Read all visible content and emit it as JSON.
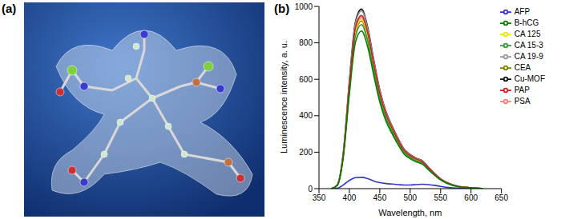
{
  "panel_labels": [
    "(a)",
    "(b)"
  ],
  "chart_data": {
    "type": "line",
    "x_label": "Wavelength, nm",
    "y_label": "Luminescence intensity, a. u.",
    "x": [
      370,
      380,
      390,
      400,
      410,
      420,
      430,
      440,
      450,
      460,
      470,
      480,
      490,
      500,
      510,
      520,
      530,
      540,
      550,
      560,
      580,
      600,
      620
    ],
    "xlim": [
      350,
      650
    ],
    "xticks": [
      350,
      400,
      450,
      500,
      550,
      600,
      650
    ],
    "ylim": [
      0,
      1000
    ],
    "yticks": [
      0,
      200,
      400,
      600,
      800,
      1000
    ],
    "grid": false,
    "legend": "upper right",
    "series": [
      {
        "name": "Cu-MOF",
        "color": "#111111",
        "values": [
          0,
          20,
          197,
          591,
          916,
          985,
          887,
          709,
          542,
          424,
          345,
          276,
          217,
          187,
          167,
          153,
          118,
          84,
          54,
          34,
          12,
          5,
          0
        ]
      },
      {
        "name": "AFP",
        "color": "#3333cc",
        "values": [
          0,
          2,
          20,
          45,
          60,
          62,
          55,
          42,
          33,
          28,
          25,
          22,
          20,
          20,
          22,
          24,
          22,
          18,
          12,
          7,
          3,
          1,
          0
        ]
      },
      {
        "name": "CEA",
        "color": "#808000",
        "values": [
          0,
          18,
          184,
          552,
          856,
          920,
          828,
          662,
          506,
          396,
          322,
          258,
          202,
          175,
          156,
          143,
          110,
          78,
          51,
          32,
          11,
          5,
          0
        ]
      },
      {
        "name": "PSA",
        "color": "#f08070",
        "values": [
          0,
          19,
          188,
          564,
          874,
          940,
          846,
          677,
          517,
          404,
          329,
          263,
          207,
          179,
          160,
          146,
          113,
          80,
          52,
          33,
          11,
          5,
          0
        ]
      },
      {
        "name": "CA 125",
        "color": "#f0e020",
        "values": [
          0,
          19,
          186,
          558,
          865,
          930,
          837,
          670,
          512,
          400,
          326,
          260,
          205,
          177,
          158,
          144,
          112,
          79,
          51,
          33,
          11,
          5,
          0
        ]
      },
      {
        "name": "CA 15-3",
        "color": "#339933",
        "values": [
          0,
          18,
          180,
          540,
          837,
          900,
          810,
          648,
          495,
          387,
          315,
          252,
          198,
          171,
          153,
          140,
          108,
          77,
          50,
          32,
          11,
          5,
          0
        ]
      },
      {
        "name": "CA 19-9",
        "color": "#999999",
        "values": [
          0,
          20,
          195,
          585,
          907,
          975,
          878,
          702,
          536,
          419,
          341,
          273,
          215,
          185,
          166,
          151,
          117,
          83,
          54,
          34,
          12,
          5,
          0
        ]
      },
      {
        "name": "PAP",
        "color": "#cc2222",
        "values": [
          0,
          19,
          190,
          570,
          884,
          950,
          855,
          684,
          523,
          409,
          333,
          266,
          209,
          181,
          162,
          147,
          114,
          81,
          52,
          33,
          11,
          5,
          0
        ]
      },
      {
        "name": "B-hCG",
        "color": "#008000",
        "values": [
          0,
          17,
          173,
          519,
          804,
          865,
          779,
          623,
          476,
          372,
          303,
          242,
          190,
          164,
          147,
          134,
          104,
          74,
          48,
          30,
          10,
          4,
          0
        ]
      }
    ]
  }
}
